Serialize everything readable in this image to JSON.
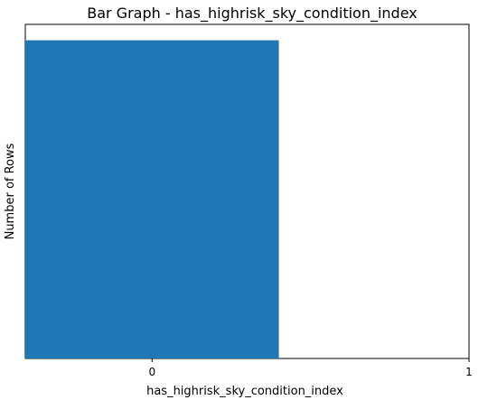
{
  "chart_data": {
    "type": "bar",
    "title": "Bar Graph - has_highrisk_sky_condition_index",
    "xlabel": "has_highrisk_sky_condition_index",
    "ylabel": "Number of Rows",
    "categories": [
      "0",
      "1"
    ],
    "x": [
      0,
      1
    ],
    "values": [
      1,
      0
    ],
    "bar_color": "#1f77b4",
    "show_y_ticks": false,
    "grid": false,
    "xlim": [
      -0.4,
      1.0
    ],
    "ylim": [
      0,
      1.05
    ]
  }
}
